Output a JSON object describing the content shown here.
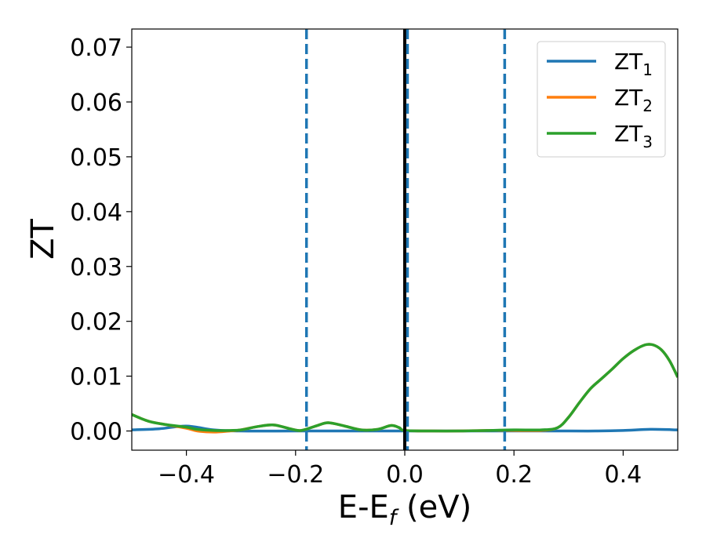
{
  "chart_data": {
    "type": "line",
    "xlabel": "E-E",
    "xlabel_sub": "f",
    "xlabel_unit": " (eV)",
    "ylabel": "ZT",
    "xlim": [
      -0.5,
      0.5
    ],
    "ylim": [
      -0.0035,
      0.0733
    ],
    "x_ticks": [
      -0.4,
      -0.2,
      0.0,
      0.2,
      0.4
    ],
    "x_tick_labels": [
      "−0.4",
      "−0.2",
      "0.0",
      "0.2",
      "0.4"
    ],
    "y_ticks": [
      0.0,
      0.01,
      0.02,
      0.03,
      0.04,
      0.05,
      0.06,
      0.07
    ],
    "y_tick_labels": [
      "0.00",
      "0.01",
      "0.02",
      "0.03",
      "0.04",
      "0.05",
      "0.06",
      "0.07"
    ],
    "grid": false,
    "legend_position": "top-right",
    "vertical_lines": [
      {
        "x": 0.0,
        "style": "solid",
        "color": "#000000"
      },
      {
        "x": -0.18,
        "style": "dashed",
        "color": "#1f77b4"
      },
      {
        "x": 0.005,
        "style": "dashed",
        "color": "#1f77b4"
      },
      {
        "x": 0.183,
        "style": "dashed",
        "color": "#1f77b4"
      }
    ],
    "series": [
      {
        "name": "ZT",
        "name_sub": "1",
        "color": "#1f77b4",
        "x": [
          -0.5,
          -0.45,
          -0.4,
          -0.35,
          -0.3,
          -0.2,
          -0.1,
          0.0,
          0.1,
          0.2,
          0.3,
          0.35,
          0.4,
          0.45,
          0.5
        ],
        "y": [
          0.0002,
          0.0004,
          0.0009,
          0.0002,
          0.0,
          0.0,
          0.0,
          0.0,
          0.0,
          0.0,
          0.0,
          0.0,
          0.0001,
          0.0003,
          0.0002
        ]
      },
      {
        "name": "ZT",
        "name_sub": "2",
        "color": "#ff7f0e",
        "x": [
          -0.5,
          -0.47,
          -0.44,
          -0.4,
          -0.38,
          -0.35,
          -0.32,
          -0.3,
          -0.27,
          -0.24,
          -0.21,
          -0.19,
          -0.16,
          -0.14,
          -0.11,
          -0.08,
          -0.05,
          -0.025,
          -0.01,
          0.0,
          0.05,
          0.1,
          0.15,
          0.2,
          0.25,
          0.28,
          0.3,
          0.32,
          0.34,
          0.36,
          0.38,
          0.4,
          0.42,
          0.44,
          0.455,
          0.47,
          0.485,
          0.5
        ],
        "y": [
          0.003,
          0.0018,
          0.0012,
          0.0005,
          0.0,
          -0.0002,
          0.0,
          0.0002,
          0.0008,
          0.0011,
          0.0004,
          0.0001,
          0.001,
          0.0015,
          0.0009,
          0.0002,
          0.0003,
          0.001,
          0.0006,
          0.0001,
          0.0,
          0.0,
          0.0001,
          0.0001,
          0.0001,
          0.0006,
          0.0025,
          0.0052,
          0.0077,
          0.0095,
          0.0113,
          0.0132,
          0.0147,
          0.0157,
          0.0157,
          0.0148,
          0.0128,
          0.0098
        ]
      },
      {
        "name": "ZT",
        "name_sub": "3",
        "color": "#2ca02c",
        "x": [
          -0.5,
          -0.47,
          -0.44,
          -0.4,
          -0.38,
          -0.35,
          -0.32,
          -0.3,
          -0.27,
          -0.24,
          -0.21,
          -0.19,
          -0.16,
          -0.14,
          -0.11,
          -0.08,
          -0.05,
          -0.025,
          -0.01,
          0.0,
          0.05,
          0.1,
          0.15,
          0.2,
          0.25,
          0.28,
          0.3,
          0.32,
          0.34,
          0.36,
          0.38,
          0.4,
          0.42,
          0.44,
          0.455,
          0.47,
          0.485,
          0.5
        ],
        "y": [
          0.003,
          0.0018,
          0.0012,
          0.0007,
          0.0003,
          0.0001,
          0.0001,
          0.0002,
          0.0008,
          0.0011,
          0.0004,
          0.0001,
          0.001,
          0.0015,
          0.0009,
          0.0002,
          0.0003,
          0.001,
          0.0006,
          0.0001,
          0.0,
          0.0,
          0.0001,
          0.0002,
          0.0002,
          0.0006,
          0.0025,
          0.0052,
          0.0077,
          0.0095,
          0.0113,
          0.0132,
          0.0147,
          0.0157,
          0.0157,
          0.0148,
          0.0128,
          0.0098
        ]
      }
    ]
  }
}
